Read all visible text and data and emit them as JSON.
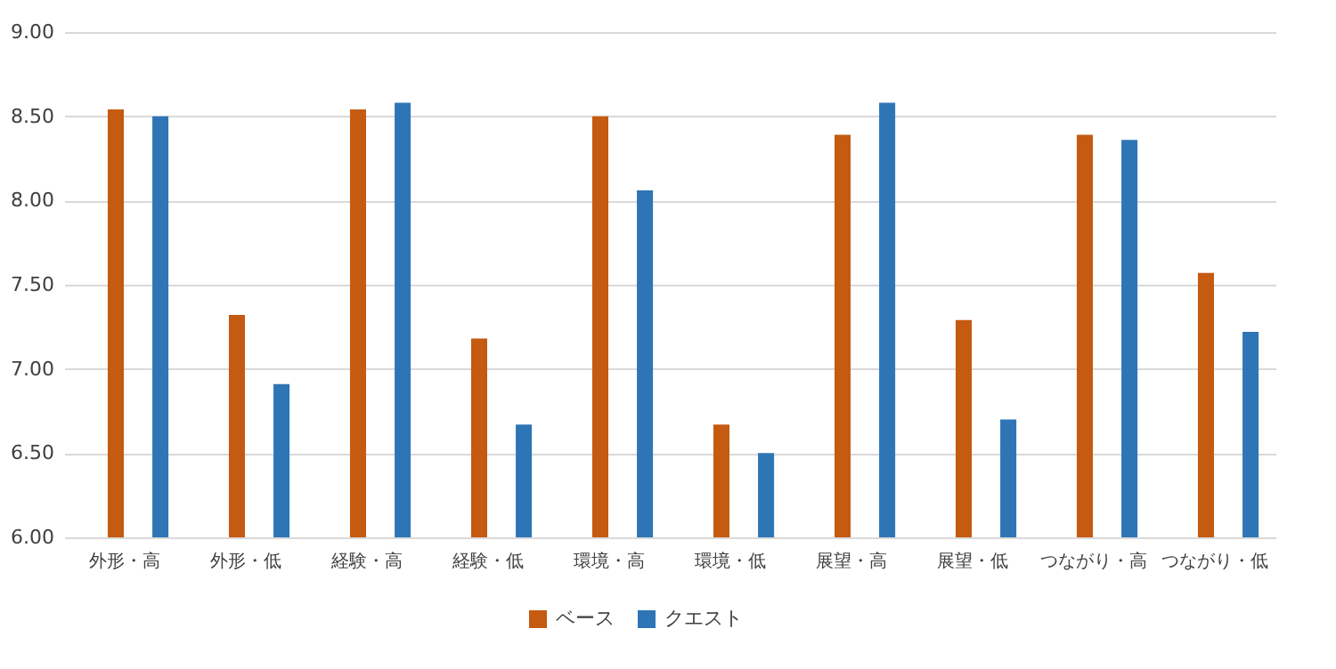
{
  "chart_data": {
    "type": "bar",
    "categories": [
      "外形・高",
      "外形・低",
      "経験・高",
      "経験・低",
      "環境・高",
      "環境・低",
      "展望・高",
      "展望・低",
      "つながり・高",
      "つながり・低"
    ],
    "series": [
      {
        "name": "ベース",
        "color": "#c55a11",
        "values": [
          8.54,
          7.32,
          8.54,
          7.18,
          8.5,
          6.67,
          8.39,
          7.29,
          8.39,
          7.57
        ]
      },
      {
        "name": "クエスト",
        "color": "#2e75b6",
        "values": [
          8.5,
          6.91,
          8.58,
          6.67,
          8.06,
          6.5,
          8.58,
          6.7,
          8.36,
          7.22
        ]
      }
    ],
    "ylim": [
      6,
      9
    ],
    "yticks": [
      {
        "value": 6,
        "label": "6.00"
      },
      {
        "value": 6.5,
        "label": "6.50"
      },
      {
        "value": 7,
        "label": "7.00"
      },
      {
        "value": 7.5,
        "label": "7.50"
      },
      {
        "value": 8,
        "label": "8.00"
      },
      {
        "value": 8.5,
        "label": "8.50"
      },
      {
        "value": 9,
        "label": "9.00"
      }
    ],
    "grid": "y",
    "legend": "bottom"
  }
}
